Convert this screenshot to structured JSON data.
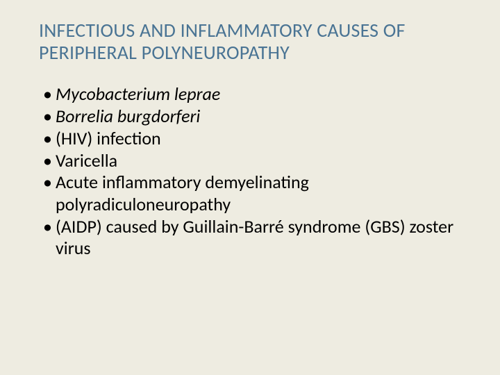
{
  "slide": {
    "background_color": "#eeece1",
    "title": {
      "text": "INFECTIOUS AND INFLAMMATORY CAUSES OF PERIPHERAL POLYNEUROPATHY",
      "color": "#4a7494",
      "fontsize": 28,
      "font_weight": 400
    },
    "bullets": [
      {
        "text": "Mycobacterium leprae",
        "italic": true
      },
      {
        "text": "Borrelia burgdorferi",
        "italic": true
      },
      {
        "text": "(HIV) infection",
        "italic": false
      },
      {
        "text": "Varicella",
        "italic": false
      },
      {
        "text": "Acute inflammatory demyelinating polyradiculoneuropathy",
        "italic": false
      },
      {
        "text": "(AIDP) caused by Guillain-Barré syndrome (GBS) zoster virus",
        "italic": false
      }
    ],
    "body_fontsize": 26,
    "body_color": "#000000",
    "bullet_char": "•"
  }
}
